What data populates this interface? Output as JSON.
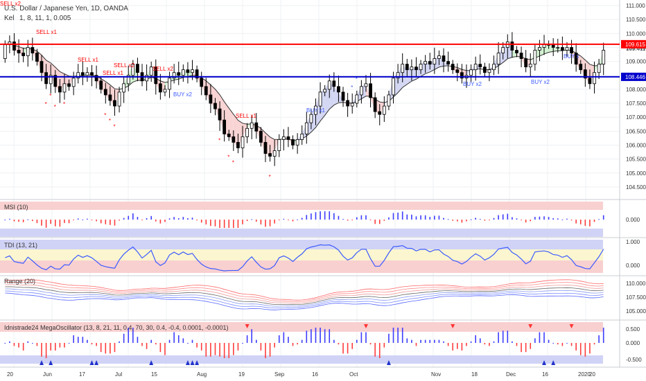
{
  "header": {
    "title": "U.S. Dollar / Japanese Yen, 1D, OANDA",
    "indicator_label": "Kel",
    "indicator_params": "1, 8, 11, 1, 0.005"
  },
  "price_axis": {
    "ticks": [
      "111.000",
      "110.500",
      "110.000",
      "109.500",
      "109.000",
      "108.500",
      "108.000",
      "107.500",
      "107.000",
      "106.500",
      "106.000",
      "105.500",
      "105.000",
      "104.500"
    ],
    "current_price": "109.411"
  },
  "levels": {
    "resistance": {
      "value": 109.615,
      "label": "109.615",
      "color": "#ff0000"
    },
    "support": {
      "value": 108.446,
      "label": "108.446",
      "color": "#0000cc"
    }
  },
  "signals": {
    "sell": [
      {
        "text": "SELL x2"
      },
      {
        "text": "SELL x1"
      },
      {
        "text": "SELL x1"
      },
      {
        "text": "SELL x1"
      },
      {
        "text": "SELL x2"
      },
      {
        "text": "SELL x2"
      },
      {
        "text": "SELL x1"
      }
    ],
    "buy": [
      {
        "text": "BUY x2"
      },
      {
        "text": "BUY x1"
      },
      {
        "text": "BUY x2"
      },
      {
        "text": "BUY x2"
      },
      {
        "text": "BUY x"
      }
    ]
  },
  "panels": {
    "msi": {
      "title": "MSI (10)",
      "tick": "0.000"
    },
    "tdi": {
      "title": "TDI (13, 21)",
      "ticks": [
        "1.000",
        "0.000"
      ]
    },
    "range": {
      "title": "Range (20)",
      "ticks": [
        "110.000",
        "107.500",
        "105.000"
      ]
    },
    "osc": {
      "title": "Idnistrade24 MegaOscillator (13, 8, 21, 11, 0.4, 70, 30, 0.4, -0.4, 0.0001, -0.0001)",
      "ticks": [
        "0.500",
        "0.000",
        "-0.500"
      ]
    }
  },
  "time_axis": {
    "labels": [
      "20",
      "Jun",
      "17",
      "Jul",
      "15",
      "Aug",
      "19",
      "Sep",
      "16",
      "Oct",
      "Nov",
      "18",
      "Dec",
      "16",
      "2020",
      "20"
    ]
  },
  "colors": {
    "up_candle": "#ffffff",
    "down_candle": "#000000",
    "sell_text": "#ff0000",
    "buy_text": "#3c5aff",
    "msi_pos": "#3c3cff",
    "msi_neg": "#ff3c3c",
    "tdi_line_up": "#3c5aff",
    "tdi_line_down": "#ff3c3c",
    "cloud_bear": "#f7c9c9",
    "cloud_bull": "#c9f0c9",
    "cloud_blue": "#c9cdf0"
  },
  "chart_data": {
    "type": "candlestick",
    "symbol": "USDJPY",
    "timeframe": "1D",
    "series": [
      {
        "name": "price",
        "close": [
          109.6,
          109.7,
          109.4,
          109.3,
          109.2,
          109.5,
          109.3,
          109.0,
          108.6,
          108.2,
          108.5,
          108.1,
          107.9,
          108.2,
          108.1,
          108.4,
          108.6,
          108.5,
          108.6,
          108.5,
          108.3,
          108.0,
          107.8,
          107.6,
          107.4,
          107.9,
          108.2,
          108.5,
          108.9,
          108.6,
          108.3,
          108.5,
          108.8,
          108.2,
          107.9,
          108.0,
          108.4,
          108.6,
          108.5,
          108.7,
          108.6,
          108.7,
          108.4,
          108.1,
          107.8,
          107.5,
          107.3,
          106.9,
          106.4,
          106.3,
          106.1,
          105.9,
          106.3,
          106.6,
          106.8,
          106.5,
          106.1,
          105.7,
          105.6,
          105.8,
          106.2,
          106.3,
          106.2,
          106.0,
          106.2,
          106.4,
          106.8,
          107.1,
          107.4,
          107.9,
          108.0,
          108.3,
          108.1,
          107.9,
          107.6,
          107.4,
          107.5,
          107.8,
          108.1,
          108.2,
          107.7,
          107.2,
          107.1,
          107.4,
          107.8,
          108.4,
          108.6,
          108.9,
          108.7,
          108.8,
          108.7,
          108.9,
          109.0,
          108.9,
          109.1,
          109.2,
          109.0,
          108.9,
          108.7,
          108.6,
          108.4,
          108.5,
          108.7,
          108.9,
          108.8,
          108.6,
          108.7,
          108.9,
          109.3,
          109.5,
          109.7,
          109.4,
          109.3,
          109.1,
          108.8,
          108.9,
          109.4,
          109.5,
          109.6,
          109.6,
          109.5,
          109.5,
          109.4,
          109.5,
          109.3,
          108.9,
          108.7,
          108.4,
          108.2,
          108.6,
          108.9,
          109.4
        ]
      },
      {
        "name": "open",
        "close": [
          109.1,
          109.6,
          109.7,
          109.4,
          109.3,
          109.2,
          109.5,
          109.3,
          109.0,
          108.6,
          108.2,
          108.5,
          108.1,
          107.9,
          108.2,
          108.1,
          108.4,
          108.6,
          108.5,
          108.6,
          108.5,
          108.3,
          108.0,
          107.8,
          107.6,
          107.4,
          107.9,
          108.2,
          108.5,
          108.9,
          108.6,
          108.3,
          108.5,
          108.8,
          108.2,
          107.9,
          108.0,
          108.4,
          108.6,
          108.5,
          108.7,
          108.6,
          108.7,
          108.4,
          108.1,
          107.8,
          107.5,
          107.3,
          106.9,
          106.4,
          106.3,
          106.1,
          105.9,
          106.3,
          106.6,
          106.8,
          106.5,
          106.1,
          105.7,
          105.6,
          105.8,
          106.2,
          106.3,
          106.2,
          106.0,
          106.2,
          106.4,
          106.8,
          107.1,
          107.4,
          107.9,
          108.0,
          108.3,
          108.1,
          107.9,
          107.6,
          107.4,
          107.5,
          107.8,
          108.1,
          108.2,
          107.7,
          107.2,
          107.1,
          107.4,
          107.8,
          108.4,
          108.6,
          108.9,
          108.7,
          108.8,
          108.7,
          108.9,
          109.0,
          108.9,
          109.1,
          109.2,
          109.0,
          108.9,
          108.7,
          108.6,
          108.4,
          108.5,
          108.7,
          108.9,
          108.8,
          108.6,
          108.7,
          108.9,
          109.3,
          109.5,
          109.7,
          109.4,
          109.3,
          109.1,
          108.8,
          108.9,
          109.4,
          109.5,
          109.6,
          109.6,
          109.5,
          109.5,
          109.4,
          109.5,
          109.3,
          108.9,
          108.7,
          108.4,
          108.2,
          108.6,
          108.9
        ]
      }
    ],
    "ylim": [
      104.2,
      111.1
    ],
    "xlabel": "",
    "ylabel": "",
    "horizontal_levels": [
      109.615,
      108.446
    ]
  }
}
